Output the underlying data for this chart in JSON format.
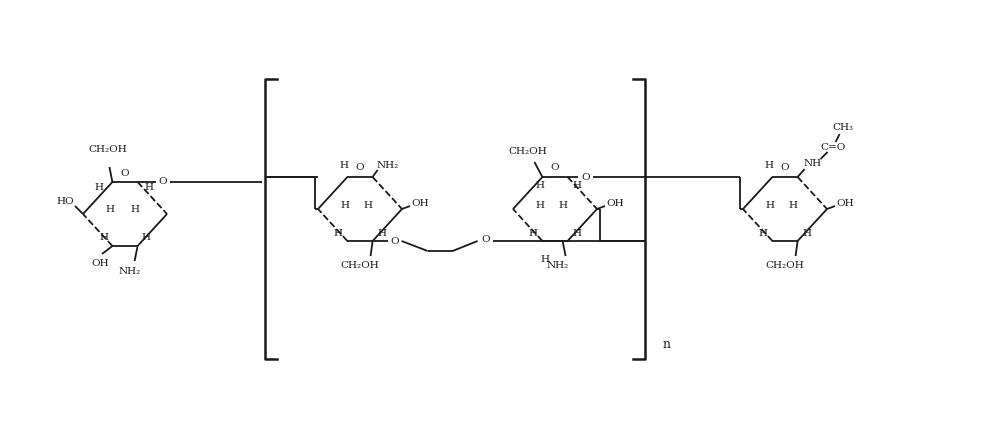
{
  "bg_color": "#ffffff",
  "line_color": "#1a1a1a",
  "figsize": [
    10.0,
    4.34
  ],
  "dpi": 100,
  "font_size": 7.5,
  "line_width": 1.3,
  "xlim": [
    0,
    100
  ],
  "ylim": [
    0,
    43.4
  ]
}
